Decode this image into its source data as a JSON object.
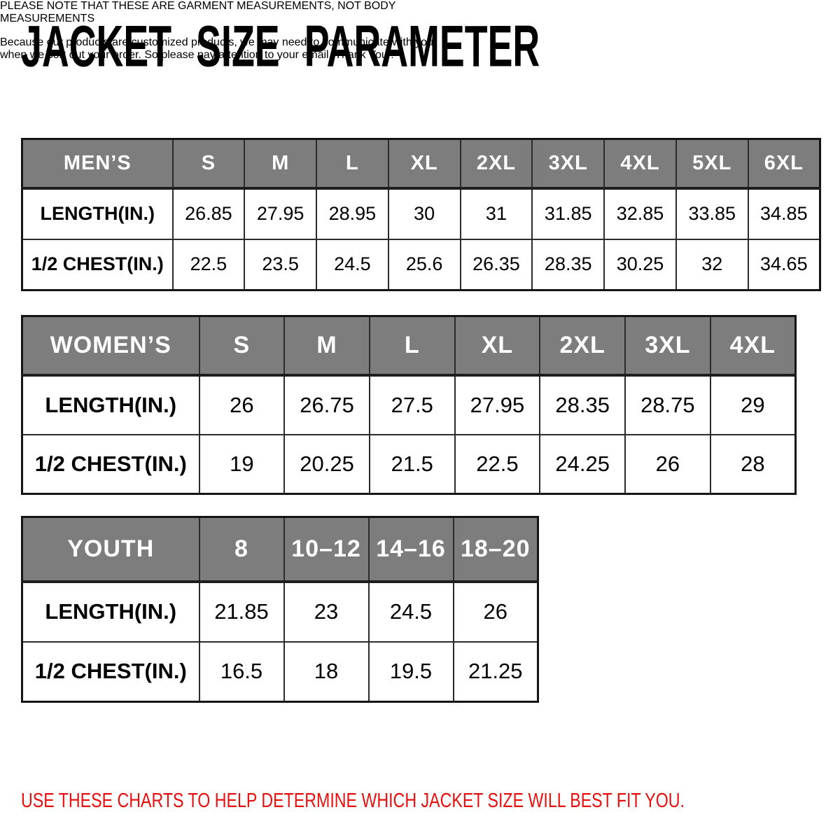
{
  "title": "JACKET SIZE PARAMETER",
  "note_lines": [
    "PLEASE NOTE THAT THESE ARE GARMENT MEASUREMENTS, NOT BODY",
    "MEASUREMENTS"
  ],
  "colors": {
    "accent_red": "#e8100e",
    "header_bg": "#7d7d7d",
    "header_text": "#ffffff",
    "table_border": "#2b2b2b"
  },
  "tables": [
    {
      "name": "mens",
      "header": [
        "MEN’S",
        "S",
        "M",
        "L",
        "XL",
        "2XL",
        "3XL",
        "4XL",
        "5XL",
        "6XL"
      ],
      "rows": [
        [
          "LENGTH(IN.)",
          "26.85",
          "27.95",
          "28.95",
          "30",
          "31",
          "31.85",
          "32.85",
          "33.85",
          "34.85"
        ],
        [
          "1/2 CHEST(IN.)",
          "22.5",
          "23.5",
          "24.5",
          "25.6",
          "26.35",
          "28.35",
          "30.25",
          "32",
          "34.65"
        ]
      ]
    },
    {
      "name": "womens",
      "header": [
        "WOMEN’S",
        "S",
        "M",
        "L",
        "XL",
        "2XL",
        "3XL",
        "4XL"
      ],
      "rows": [
        [
          "LENGTH(IN.)",
          "26",
          "26.75",
          "27.5",
          "27.95",
          "28.35",
          "28.75",
          "29"
        ],
        [
          "1/2 CHEST(IN.)",
          "19",
          "20.25",
          "21.5",
          "22.5",
          "24.25",
          "26",
          "28"
        ]
      ]
    },
    {
      "name": "youth",
      "header": [
        "YOUTH",
        "8",
        "10–12",
        "14–16",
        "18–20"
      ],
      "rows": [
        [
          "LENGTH(IN.)",
          "21.85",
          "23",
          "24.5",
          "26"
        ],
        [
          "1/2 CHEST(IN.)",
          "16.5",
          "18",
          "19.5",
          "21.25"
        ]
      ]
    }
  ],
  "footer_lines": [
    "Because our products are customized products, we may need to communicate with you",
    "when we sort out your order. So please pay attention to your email. Thank You !"
  ],
  "fit_note": "USE THESE CHARTS TO HELP DETERMINE WHICH JACKET SIZE WILL BEST FIT YOU."
}
